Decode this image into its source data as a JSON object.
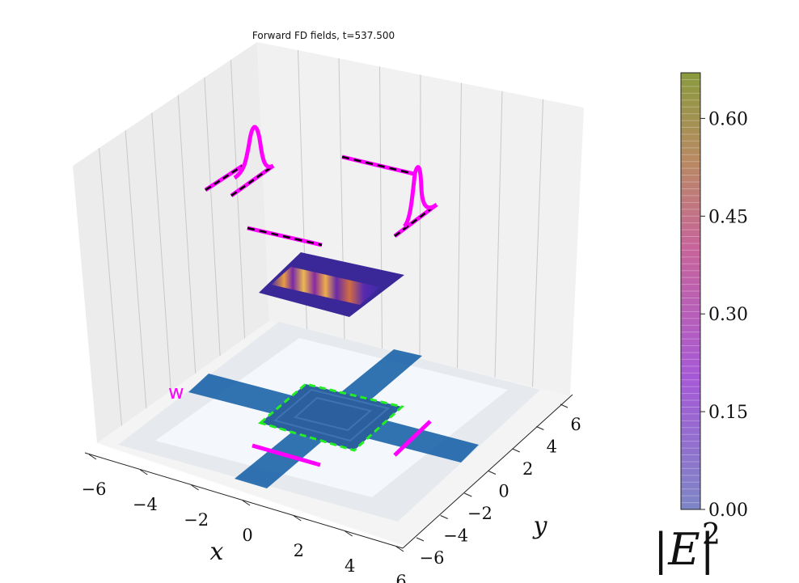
{
  "chart_data": {
    "type": "3d-field-plot",
    "title": "Forward FD fields, t=537.500",
    "xlabel": "x",
    "ylabel": "y",
    "x_ticks": [
      "−6",
      "−4",
      "−2",
      "0",
      "2",
      "4",
      "6"
    ],
    "y_ticks": [
      "−6",
      "−4",
      "−2",
      "0",
      "2",
      "4",
      "6"
    ],
    "xlim": [
      -6,
      6
    ],
    "ylim": [
      -6,
      6
    ],
    "partial_label": "w",
    "colorbar": {
      "label": "|E|",
      "label_superscript": "2",
      "ticks": [
        "0.00",
        "0.15",
        "0.30",
        "0.45",
        "0.60"
      ],
      "tick_values": [
        0.0,
        0.15,
        0.3,
        0.45,
        0.6
      ],
      "range": [
        0,
        0.67
      ],
      "colors": [
        "#7d86c6",
        "#a659d6",
        "#c8649a",
        "#b88a62",
        "#8a9a3e"
      ]
    },
    "colors": {
      "waveguide": "#1f66aa",
      "design_outline": "#22ee22",
      "monitor": "#ff00ff",
      "mode_dash": "#000000"
    }
  }
}
